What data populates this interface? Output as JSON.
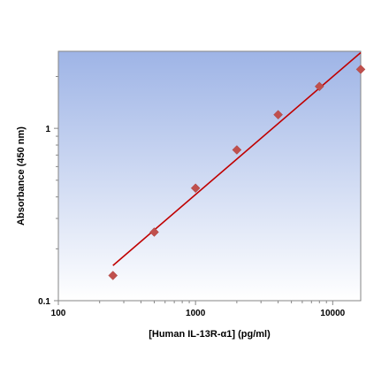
{
  "chart_data": {
    "type": "scatter",
    "title": "",
    "xlabel": "[Human IL-13R-α1] (pg/ml)",
    "ylabel": "Absorbance (450 nm)",
    "xscale": "log",
    "yscale": "log",
    "xlim": [
      100,
      16000
    ],
    "ylim": [
      0.1,
      2.8
    ],
    "xticks": [
      {
        "value": 100,
        "label": "100"
      },
      {
        "value": 1000,
        "label": "1000"
      },
      {
        "value": 10000,
        "label": "10000"
      }
    ],
    "yticks": [
      {
        "value": 0.1,
        "label": "0.1"
      },
      {
        "value": 1,
        "label": "1"
      }
    ],
    "points": [
      {
        "x": 250,
        "y": 0.14
      },
      {
        "x": 500,
        "y": 0.25
      },
      {
        "x": 1000,
        "y": 0.45
      },
      {
        "x": 2000,
        "y": 0.75
      },
      {
        "x": 4000,
        "y": 1.2
      },
      {
        "x": 8000,
        "y": 1.75
      },
      {
        "x": 16000,
        "y": 2.2
      }
    ],
    "fit_line": {
      "x": [
        250,
        16000
      ],
      "y": [
        0.16,
        2.75
      ]
    },
    "grid": false,
    "legend": "none",
    "colors": {
      "marker": "#c0504d",
      "fit_line": "#c00000",
      "plot_bg_top": "#9eb4e6",
      "plot_bg_bottom": "#ffffff",
      "axis": "#868686"
    }
  }
}
